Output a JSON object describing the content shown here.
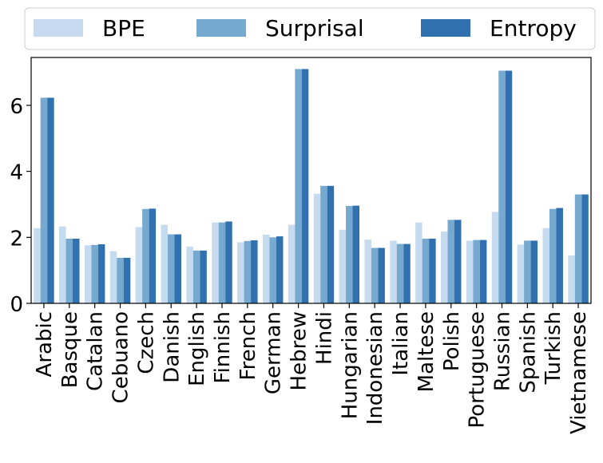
{
  "chart_data": {
    "type": "bar",
    "categories": [
      "Arabic",
      "Basque",
      "Catalan",
      "Cebuano",
      "Czech",
      "Danish",
      "English",
      "Finnish",
      "French",
      "German",
      "Hebrew",
      "Hindi",
      "Hungarian",
      "Indonesian",
      "Italian",
      "Maltese",
      "Polish",
      "Portuguese",
      "Russian",
      "Spanish",
      "Turkish",
      "Vietnamese"
    ],
    "series": [
      {
        "name": "BPE",
        "color": "#c6dbef",
        "values": [
          2.28,
          2.33,
          1.76,
          1.58,
          2.31,
          2.38,
          1.72,
          2.45,
          1.85,
          2.08,
          2.38,
          3.32,
          2.23,
          1.93,
          1.9,
          2.45,
          2.18,
          1.9,
          2.77,
          1.78,
          2.28,
          1.45
        ]
      },
      {
        "name": "Surprisal",
        "color": "#76a9cf",
        "values": [
          6.23,
          1.96,
          1.77,
          1.38,
          2.86,
          2.09,
          1.6,
          2.45,
          1.89,
          2.0,
          7.1,
          3.56,
          2.95,
          1.68,
          1.8,
          1.96,
          2.53,
          1.92,
          7.05,
          1.9,
          2.86,
          3.3
        ]
      },
      {
        "name": "Entropy",
        "color": "#3171b0",
        "values": [
          6.23,
          1.96,
          1.79,
          1.38,
          2.87,
          2.09,
          1.6,
          2.48,
          1.91,
          2.03,
          7.1,
          3.56,
          2.96,
          1.68,
          1.8,
          1.96,
          2.53,
          1.92,
          7.05,
          1.9,
          2.89,
          3.3
        ]
      }
    ],
    "yticks": [
      0,
      2,
      4,
      6
    ],
    "ylim": [
      0,
      7.45
    ],
    "xlabel": "",
    "ylabel": "",
    "title": "",
    "legend": "top, outside, single row",
    "grid": false
  }
}
